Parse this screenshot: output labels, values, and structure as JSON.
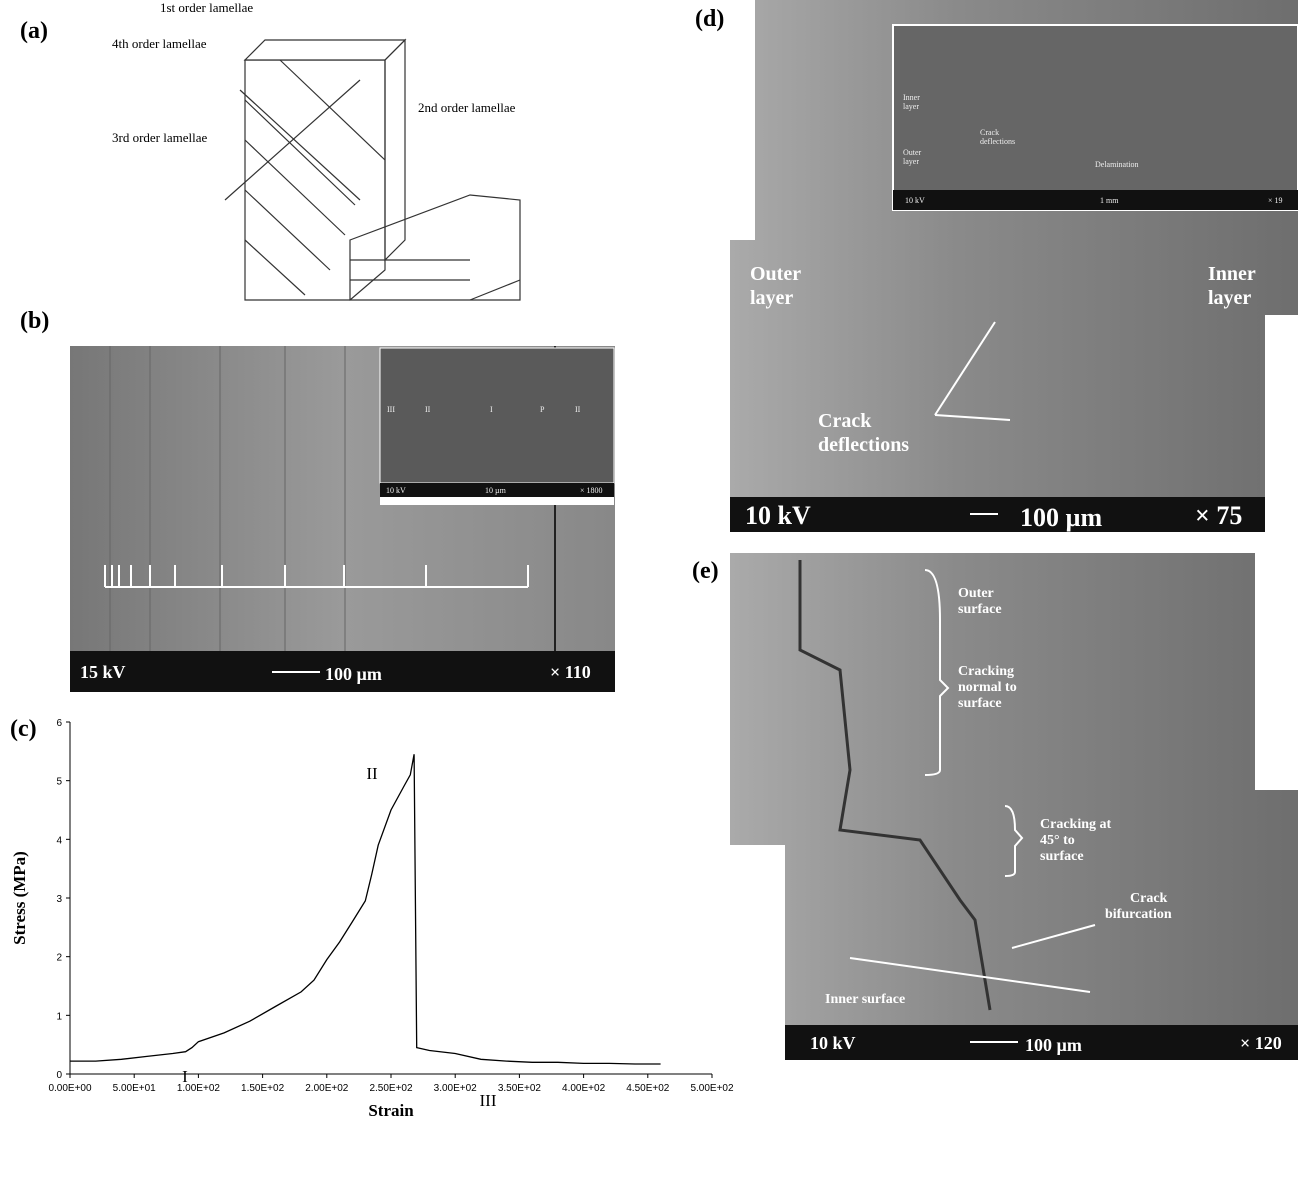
{
  "panels": {
    "a": {
      "label": "(a)",
      "texts": [
        "1st order lamellae",
        "4th order lamellae",
        "2nd order lamellae",
        "3rd order lamellae"
      ]
    },
    "b": {
      "label": "(b)",
      "scale_bar": [
        "15 kV",
        "100 µm",
        "× 110"
      ],
      "inset": {
        "zones": [
          "III",
          "II",
          "I",
          "P",
          "II"
        ],
        "scale_bar": [
          "10 kV",
          "10 µm",
          "× 1800"
        ]
      }
    },
    "c": {
      "label": "(c)"
    },
    "d": {
      "label": "(d)",
      "scale_bar": [
        "10 kV",
        "100 µm",
        "× 75"
      ],
      "texts": [
        [
          "Outer",
          "layer"
        ],
        [
          "Inner",
          "layer"
        ],
        [
          "Crack",
          "deflections"
        ]
      ],
      "inset": {
        "texts": [
          [
            "Inner",
            "layer"
          ],
          [
            "Crack",
            "deflections"
          ],
          [
            "Outer",
            "layer"
          ],
          [
            "Delamination"
          ]
        ],
        "scale_bar": [
          "10 kV",
          "1 mm",
          "× 19"
        ]
      }
    },
    "e": {
      "label": "(e)",
      "scale_bar": [
        "10 kV",
        "100 µm",
        "× 120"
      ],
      "texts": [
        [
          "Outer",
          "surface"
        ],
        [
          "Cracking",
          "normal to",
          "surface"
        ],
        [
          "Cracking at",
          "45° to",
          "surface"
        ],
        [
          "Crack",
          "bifurcation"
        ],
        [
          "Inner surface"
        ]
      ]
    }
  },
  "chart_data": {
    "type": "line",
    "color": "#000000",
    "x_label": "Strain",
    "y_label": "Stress (MPa)",
    "x": [
      0,
      20,
      40,
      60,
      80,
      90,
      95,
      100,
      120,
      140,
      160,
      180,
      190,
      200,
      210,
      220,
      230,
      235,
      240,
      250,
      260,
      265,
      268,
      270,
      280,
      300,
      320,
      340,
      360,
      380,
      400,
      420,
      440,
      460
    ],
    "values": [
      0.22,
      0.22,
      0.25,
      0.3,
      0.35,
      0.38,
      0.45,
      0.55,
      0.7,
      0.9,
      1.15,
      1.4,
      1.6,
      1.95,
      2.25,
      2.6,
      2.95,
      3.4,
      3.9,
      4.5,
      4.9,
      5.1,
      5.45,
      0.45,
      0.4,
      0.35,
      0.25,
      0.22,
      0.2,
      0.2,
      0.18,
      0.18,
      0.17,
      0.17
    ],
    "annotations": [
      "I",
      "II",
      "III"
    ],
    "xlim": [
      0,
      500
    ],
    "ylim": [
      0,
      6
    ],
    "xticks": [
      {
        "value": 0,
        "label": "0.00E+00"
      },
      {
        "value": 50,
        "label": "5.00E+01"
      },
      {
        "value": 100,
        "label": "1.00E+02"
      },
      {
        "value": 150,
        "label": "1.50E+02"
      },
      {
        "value": 200,
        "label": "2.00E+02"
      },
      {
        "value": 250,
        "label": "2.50E+02"
      },
      {
        "value": 300,
        "label": "3.00E+02"
      },
      {
        "value": 350,
        "label": "3.50E+02"
      },
      {
        "value": 400,
        "label": "4.00E+02"
      },
      {
        "value": 450,
        "label": "4.50E+02"
      },
      {
        "value": 500,
        "label": "5.00E+02"
      }
    ],
    "yticks": [
      0,
      1,
      2,
      3,
      4,
      5,
      6
    ]
  }
}
